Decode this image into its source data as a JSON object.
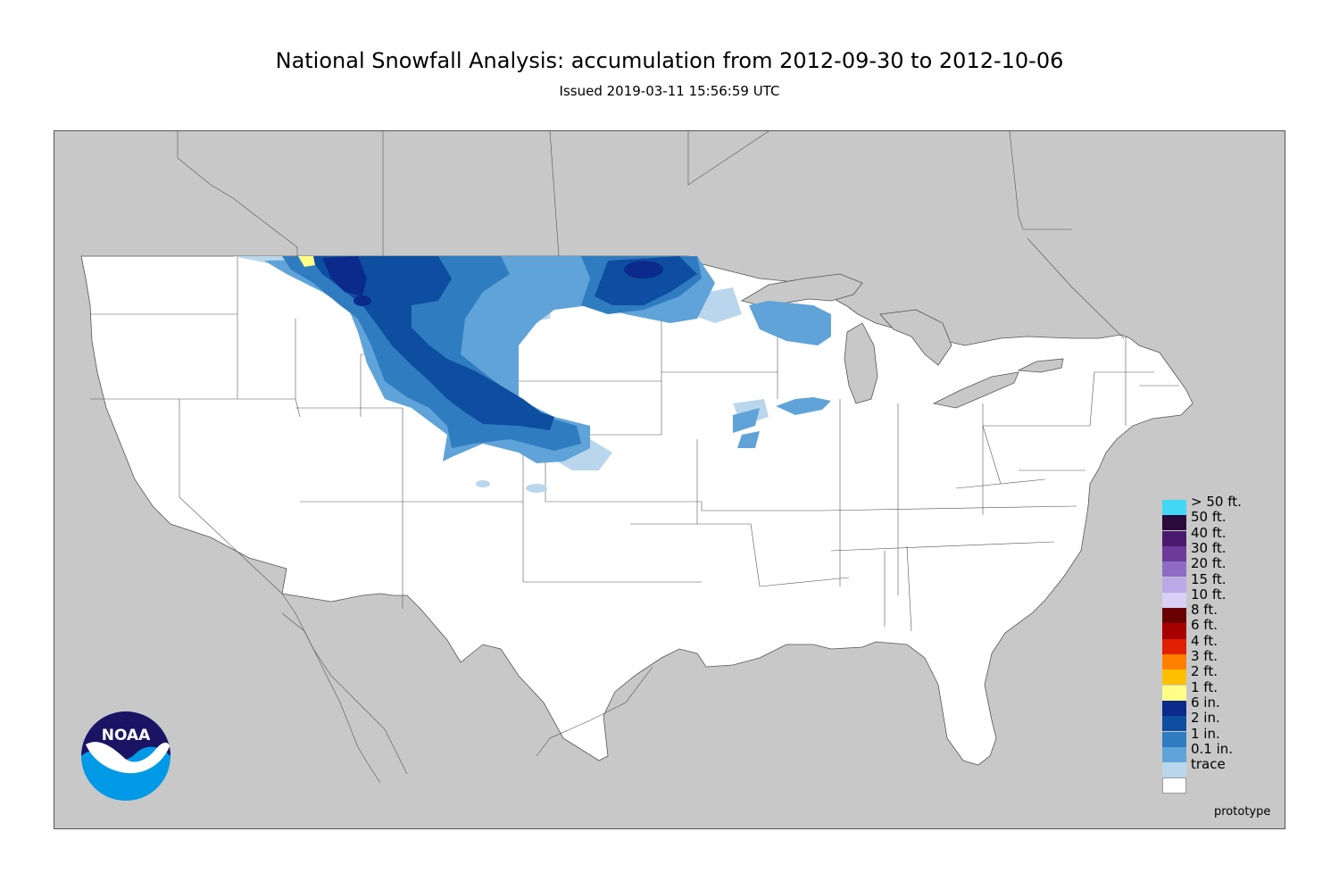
{
  "header": {
    "title": "National Snowfall Analysis: accumulation from 2012-09-30 to 2012-10-06",
    "issued": "Issued 2019-03-11 15:56:59 UTC"
  },
  "logo": {
    "text": "NOAA"
  },
  "footer": {
    "prototype": "prototype"
  },
  "colors": {
    "land": "#ffffff",
    "outside": "#c8c8c8",
    "water": "#c8c8c8",
    "border": "#555555"
  },
  "legend": [
    {
      "label": "> 50 ft.",
      "color": "#42d8f5"
    },
    {
      "label": "50 ft.",
      "color": "#2a0a3a"
    },
    {
      "label": "40 ft.",
      "color": "#4b1a6e"
    },
    {
      "label": "30 ft.",
      "color": "#6c3b9a"
    },
    {
      "label": "20 ft.",
      "color": "#8e6bc4"
    },
    {
      "label": "15 ft.",
      "color": "#b9a9e6"
    },
    {
      "label": "10 ft.",
      "color": "#d8d0f5"
    },
    {
      "label": "8 ft.",
      "color": "#6a0000"
    },
    {
      "label": "6 ft.",
      "color": "#a80000"
    },
    {
      "label": "4 ft.",
      "color": "#e02000"
    },
    {
      "label": "3 ft.",
      "color": "#ff7f00"
    },
    {
      "label": "2 ft.",
      "color": "#ffbf00"
    },
    {
      "label": "1 ft.",
      "color": "#ffff88"
    },
    {
      "label": "6 in.",
      "color": "#0b2a8c"
    },
    {
      "label": "2 in.",
      "color": "#0e4ea0"
    },
    {
      "label": "1 in.",
      "color": "#2f7cc0"
    },
    {
      "label": "0.1 in.",
      "color": "#5fa3d8"
    },
    {
      "label": "trace",
      "color": "#b9d6ec"
    },
    {
      "label": "",
      "color": "#ffffff"
    }
  ]
}
